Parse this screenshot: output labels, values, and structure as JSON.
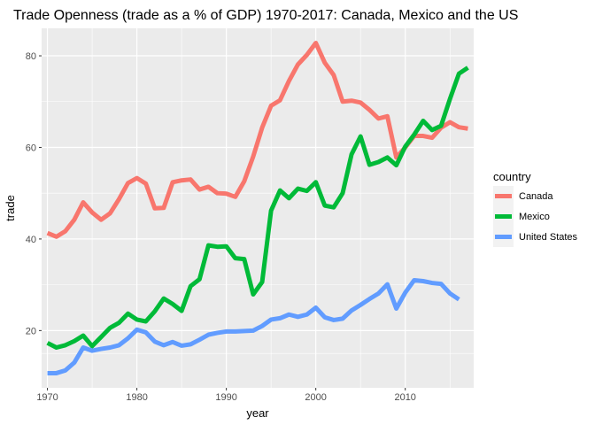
{
  "chart_data": {
    "type": "line",
    "title": "Trade Openness (trade as a % of GDP) 1970-2017: Canada, Mexico and the US",
    "xlabel": "year",
    "ylabel": "trade",
    "xlim": [
      1969.35,
      2017.65
    ],
    "ylim": [
      7.5,
      86.0
    ],
    "x_ticks": [
      1970,
      1980,
      1990,
      2000,
      2010
    ],
    "y_ticks": [
      20,
      40,
      60,
      80
    ],
    "grid": true,
    "legend_title": "country",
    "legend_position": "right",
    "x": [
      1970,
      1971,
      1972,
      1973,
      1974,
      1975,
      1976,
      1977,
      1978,
      1979,
      1980,
      1981,
      1982,
      1983,
      1984,
      1985,
      1986,
      1987,
      1988,
      1989,
      1990,
      1991,
      1992,
      1993,
      1994,
      1995,
      1996,
      1997,
      1998,
      1999,
      2000,
      2001,
      2002,
      2003,
      2004,
      2005,
      2006,
      2007,
      2008,
      2009,
      2010,
      2011,
      2012,
      2013,
      2014,
      2015,
      2016,
      2017
    ],
    "series": [
      {
        "name": "Canada",
        "color": "#F8766D",
        "values": [
          41.3,
          40.5,
          41.7,
          44.2,
          48.0,
          45.8,
          44.2,
          45.6,
          48.7,
          52.2,
          53.3,
          52.1,
          46.7,
          46.8,
          52.4,
          52.8,
          53.0,
          50.8,
          51.4,
          50.0,
          49.9,
          49.2,
          52.6,
          58.0,
          64.3,
          69.1,
          70.3,
          74.5,
          78.1,
          80.2,
          82.8,
          78.5,
          75.8,
          70.0,
          70.2,
          69.8,
          68.2,
          66.3,
          66.8,
          57.8,
          60.0,
          62.5,
          62.5,
          62.1,
          64.3,
          65.5,
          64.4,
          64.1
        ]
      },
      {
        "name": "Mexico",
        "color": "#00BA38",
        "values": [
          17.3,
          16.3,
          16.8,
          17.7,
          18.9,
          16.6,
          18.6,
          20.6,
          21.7,
          23.7,
          22.4,
          22.0,
          24.2,
          27.0,
          25.8,
          24.3,
          29.7,
          31.2,
          38.6,
          38.3,
          38.4,
          35.8,
          35.6,
          27.9,
          30.6,
          46.2,
          50.6,
          48.9,
          51.0,
          50.5,
          52.4,
          47.3,
          46.9,
          50.0,
          58.5,
          62.4,
          56.2,
          56.8,
          57.8,
          56.1,
          60.2,
          62.8,
          65.8,
          63.8,
          64.7,
          70.6,
          76.1,
          77.4
        ]
      },
      {
        "name": "United States",
        "color": "#619CFF",
        "values": [
          10.7,
          10.7,
          11.3,
          13.0,
          16.3,
          15.6,
          16.0,
          16.3,
          16.8,
          18.3,
          20.2,
          19.6,
          17.6,
          16.8,
          17.5,
          16.7,
          17.0,
          18.0,
          19.1,
          19.5,
          19.8,
          19.8,
          19.9,
          20.0,
          21.0,
          22.4,
          22.7,
          23.5,
          23.0,
          23.5,
          25.0,
          22.9,
          22.3,
          22.6,
          24.4,
          25.6,
          26.9,
          28.1,
          30.1,
          24.8,
          28.3,
          31.0,
          30.8,
          30.4,
          30.2,
          28.1,
          26.8,
          null
        ]
      }
    ]
  }
}
